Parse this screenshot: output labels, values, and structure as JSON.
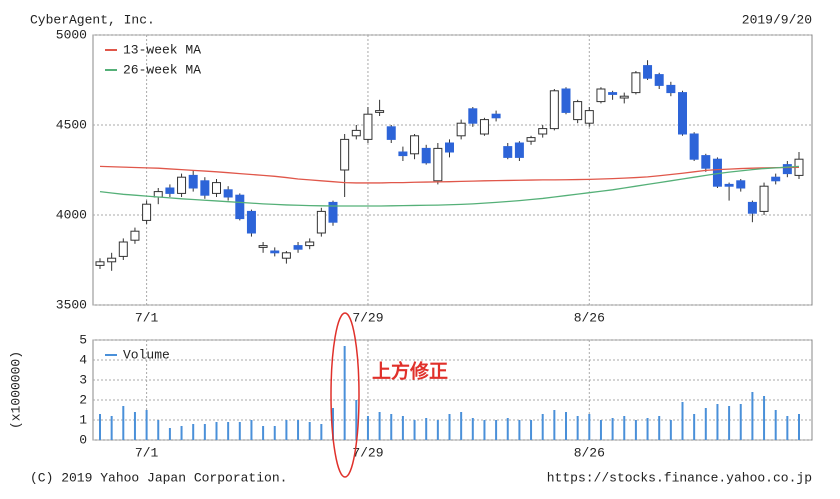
{
  "header": {
    "company": "CyberAgent, Inc.",
    "date": "2019/9/20"
  },
  "footer": {
    "copyright": "(C) 2019 Yahoo Japan Corporation.",
    "url": "https://stocks.finance.yahoo.co.jp"
  },
  "chart_data": [
    {
      "type": "candlestick",
      "categories": [
        null,
        null,
        null,
        null,
        "7/1",
        null,
        null,
        null,
        null,
        null,
        null,
        null,
        null,
        null,
        null,
        null,
        null,
        null,
        null,
        null,
        null,
        null,
        null,
        "7/29",
        null,
        null,
        null,
        null,
        null,
        null,
        null,
        null,
        null,
        null,
        null,
        null,
        null,
        null,
        null,
        null,
        null,
        null,
        "8/26",
        null,
        null,
        null,
        null,
        null,
        null,
        null,
        null,
        null,
        null,
        null,
        null,
        null,
        null,
        null,
        null,
        null,
        null
      ],
      "open": [
        3720,
        3740,
        3770,
        3860,
        3970,
        4100,
        4150,
        4120,
        4220,
        4190,
        4120,
        4140,
        4110,
        4020,
        3820,
        3800,
        3760,
        3830,
        3830,
        3900,
        4070,
        4250,
        4440,
        4420,
        4570,
        4490,
        4350,
        4340,
        4370,
        4190,
        4400,
        4440,
        4590,
        4450,
        4560,
        4380,
        4400,
        4410,
        4450,
        4480,
        4700,
        4530,
        4510,
        4630,
        4680,
        4650,
        4680,
        4830,
        4780,
        4720,
        4680,
        4450,
        4330,
        4310,
        4170,
        4190,
        4070,
        4020,
        4210,
        4280,
        4220
      ],
      "high": [
        3760,
        3790,
        3870,
        3930,
        4080,
        4150,
        4170,
        4230,
        4250,
        4210,
        4200,
        4160,
        4120,
        4030,
        3850,
        3820,
        3800,
        3850,
        3870,
        4040,
        4080,
        4450,
        4500,
        4600,
        4640,
        4500,
        4380,
        4450,
        4390,
        4400,
        4420,
        4530,
        4600,
        4540,
        4580,
        4400,
        4410,
        4440,
        4500,
        4700,
        4710,
        4640,
        4600,
        4710,
        4690,
        4680,
        4800,
        4860,
        4790,
        4740,
        4690,
        4460,
        4340,
        4320,
        4180,
        4200,
        4080,
        4180,
        4230,
        4300,
        4350
      ],
      "low": [
        3700,
        3690,
        3750,
        3840,
        3950,
        4060,
        4100,
        4100,
        4130,
        4090,
        4100,
        4080,
        3970,
        3880,
        3790,
        3770,
        3730,
        3790,
        3810,
        3880,
        3940,
        4100,
        4420,
        4400,
        4550,
        4400,
        4300,
        4310,
        4280,
        4170,
        4320,
        4420,
        4490,
        4440,
        4520,
        4310,
        4300,
        4390,
        4430,
        4470,
        4560,
        4510,
        4490,
        4620,
        4640,
        4620,
        4670,
        4750,
        4700,
        4660,
        4440,
        4300,
        4240,
        4150,
        4080,
        4130,
        3960,
        4000,
        4170,
        4210,
        4200
      ],
      "close": [
        3740,
        3760,
        3850,
        3910,
        4060,
        4130,
        4120,
        4210,
        4150,
        4110,
        4180,
        4100,
        3980,
        3900,
        3830,
        3790,
        3790,
        3810,
        3850,
        4020,
        3960,
        4420,
        4470,
        4560,
        4580,
        4420,
        4330,
        4440,
        4290,
        4370,
        4350,
        4510,
        4510,
        4530,
        4540,
        4320,
        4320,
        4430,
        4480,
        4690,
        4570,
        4630,
        4580,
        4700,
        4670,
        4660,
        4790,
        4760,
        4720,
        4680,
        4450,
        4310,
        4260,
        4160,
        4160,
        4150,
        4010,
        4160,
        4190,
        4230,
        4310
      ],
      "up_color": "#ffffff",
      "down_color": "#2d64d8",
      "series": [
        {
          "name": "13-week MA",
          "color": "#e0574a",
          "values": [
            4270,
            4268,
            4266,
            4264,
            4262,
            4260,
            4256,
            4252,
            4248,
            4244,
            4240,
            4235,
            4230,
            4225,
            4220,
            4215,
            4208,
            4200,
            4195,
            4190,
            4185,
            4180,
            4178,
            4178,
            4178,
            4180,
            4180,
            4182,
            4183,
            4184,
            4185,
            4187,
            4188,
            4190,
            4191,
            4192,
            4193,
            4194,
            4195,
            4195,
            4196,
            4197,
            4198,
            4200,
            4202,
            4205,
            4208,
            4212,
            4218,
            4225,
            4232,
            4240,
            4248,
            4252,
            4255,
            4258,
            4260,
            4262,
            4263,
            4264,
            4265
          ]
        },
        {
          "name": "26-week MA",
          "color": "#55b078",
          "values": [
            4130,
            4122,
            4115,
            4110,
            4105,
            4100,
            4095,
            4090,
            4086,
            4082,
            4078,
            4074,
            4070,
            4066,
            4062,
            4059,
            4056,
            4054,
            4052,
            4051,
            4050,
            4050,
            4050,
            4050,
            4050,
            4051,
            4052,
            4053,
            4054,
            4055,
            4057,
            4059,
            4062,
            4066,
            4070,
            4075,
            4080,
            4086,
            4092,
            4100,
            4108,
            4116,
            4124,
            4132,
            4140,
            4150,
            4160,
            4170,
            4180,
            4190,
            4200,
            4210,
            4220,
            4230,
            4238,
            4245,
            4252,
            4258,
            4262,
            4266,
            4270
          ]
        }
      ],
      "ylim": [
        3500,
        5000
      ],
      "yticks": [
        3500,
        4000,
        4500,
        5000
      ],
      "grid": true,
      "legend": "top-left"
    },
    {
      "type": "bar",
      "categories": [
        null,
        null,
        null,
        null,
        "7/1",
        null,
        null,
        null,
        null,
        null,
        null,
        null,
        null,
        null,
        null,
        null,
        null,
        null,
        null,
        null,
        null,
        null,
        null,
        "7/29",
        null,
        null,
        null,
        null,
        null,
        null,
        null,
        null,
        null,
        null,
        null,
        null,
        null,
        null,
        null,
        null,
        null,
        null,
        "8/26",
        null,
        null,
        null,
        null,
        null,
        null,
        null,
        null,
        null,
        null,
        null,
        null,
        null,
        null,
        null,
        null,
        null,
        null
      ],
      "series": [
        {
          "name": "Volume",
          "color": "#4a90d9",
          "values": [
            1.3,
            1.2,
            1.7,
            1.4,
            1.5,
            1.0,
            0.6,
            0.7,
            0.8,
            0.8,
            0.9,
            0.9,
            0.9,
            1.0,
            0.7,
            0.7,
            1.0,
            1.0,
            0.9,
            0.8,
            1.6,
            4.7,
            2.0,
            1.2,
            1.4,
            1.3,
            1.2,
            1.0,
            1.1,
            1.0,
            1.3,
            1.4,
            1.1,
            1.0,
            1.0,
            1.1,
            1.0,
            1.0,
            1.3,
            1.5,
            1.4,
            1.2,
            1.3,
            1.0,
            1.1,
            1.2,
            1.0,
            1.1,
            1.2,
            1.0,
            1.9,
            1.3,
            1.6,
            1.8,
            1.7,
            1.8,
            2.4,
            2.2,
            1.5,
            1.2,
            1.3
          ]
        }
      ],
      "ylabel": "(x1000000)",
      "ylim": [
        0,
        5
      ],
      "yticks": [
        0,
        1,
        2,
        3,
        4,
        5
      ],
      "grid": true,
      "legend": "top-left",
      "annotation": {
        "text": "上方修正",
        "color": "#e0302a"
      }
    }
  ]
}
